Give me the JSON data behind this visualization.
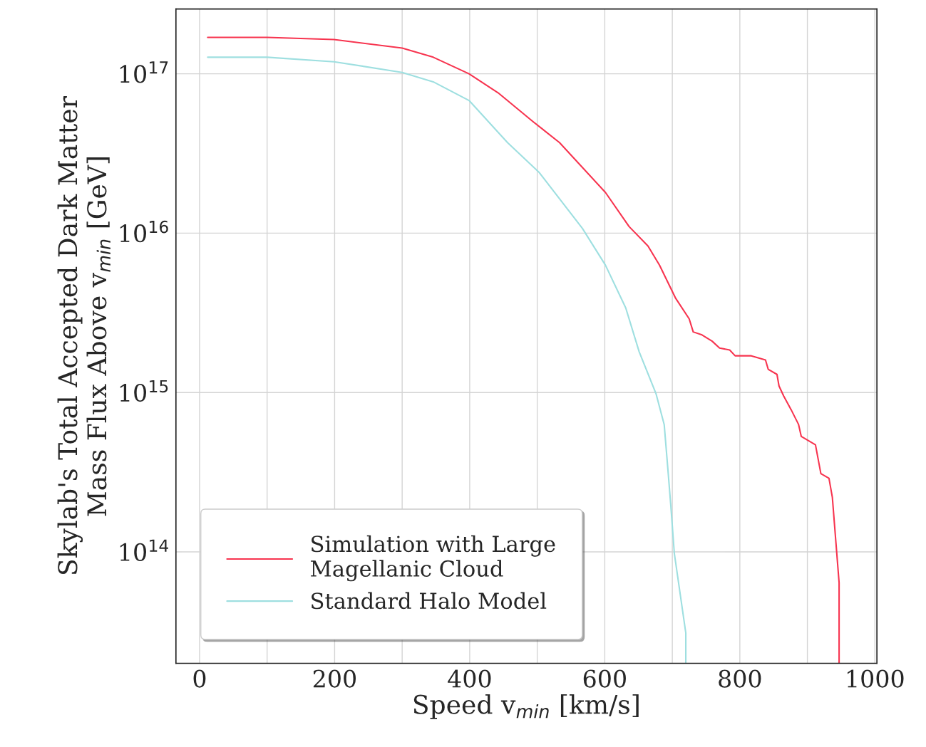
{
  "chart_data": {
    "type": "line",
    "xlabel": "Speed v$_{min}$ [km/s]",
    "ylabel": "Skylab's Total Accepted Dark Matter\nMass Flux Above v$_{min}$ [GeV]",
    "log": "y",
    "grid": true,
    "legend": "bottom left",
    "line_style": "solid",
    "marker": "none",
    "xlim": [
      -35,
      1003
    ],
    "ylim": [
      20000000000000.0,
      2.55e+17
    ],
    "xticks": [
      0,
      {
        "value": 100,
        "label": null
      },
      200,
      {
        "value": 300,
        "label": null
      },
      400,
      {
        "value": 500,
        "label": null
      },
      600,
      {
        "value": 700,
        "label": null
      },
      800,
      {
        "value": 900,
        "label": null
      },
      1000
    ],
    "yticks": [
      {
        "value": 100000000000000.0,
        "label": "10$^{14}$"
      },
      {
        "value": 1000000000000000.0,
        "label": "10$^{15}$"
      },
      {
        "value": 1e+16,
        "label": "10$^{16}$"
      },
      {
        "value": 1e+17,
        "label": "10$^{17}$"
      }
    ],
    "series": [
      {
        "name": "Simulation with Large\nMagellanic Cloud",
        "color": "#f7344f",
        "x": [
          12,
          100,
          199,
          300,
          346,
          399,
          442,
          494,
          533,
          601,
          636,
          664,
          681,
          705,
          725,
          731,
          744,
          759,
          770,
          785,
          793,
          817,
          838,
          842,
          855,
          858,
          865,
          876,
          887,
          891,
          912,
          920,
          932,
          937,
          947,
          947
        ],
        "values": [
          1.69e+17,
          1.69e+17,
          1.64e+17,
          1.45e+17,
          1.27e+17,
          1e+17,
          7.6e+16,
          5e+16,
          3.7e+16,
          1.8e+16,
          1.1e+16,
          8300000000000000.0,
          6300000000000000.0,
          3900000000000000.0,
          2900000000000000.0,
          2400000000000000.0,
          2300000000000000.0,
          2100000000000000.0,
          1900000000000000.0,
          1850000000000000.0,
          1700000000000000.0,
          1700000000000000.0,
          1600000000000000.0,
          1400000000000000.0,
          1300000000000000.0,
          1100000000000000.0,
          950000000000000.0,
          780000000000000.0,
          630000000000000.0,
          530000000000000.0,
          470000000000000.0,
          310000000000000.0,
          290000000000000.0,
          220000000000000.0,
          64000000000000.0,
          20000000000000.0
        ]
      },
      {
        "name": "Standard Halo Model",
        "color": "#9edfe0",
        "x": [
          12,
          100,
          199,
          300,
          346,
          399,
          456,
          503,
          567,
          601,
          631,
          651,
          676,
          688,
          694,
          698,
          703,
          720,
          720
        ],
        "values": [
          1.27e+17,
          1.27e+17,
          1.19e+17,
          1.02e+17,
          8.9e+16,
          6.8e+16,
          3.7e+16,
          2.4e+16,
          1.07e+16,
          6300000000000000.0,
          3400000000000000.0,
          1800000000000000.0,
          980000000000000.0,
          630000000000000.0,
          310000000000000.0,
          190000000000000.0,
          98000000000000.0,
          31000000000000.0,
          20000000000000.0
        ]
      }
    ]
  }
}
